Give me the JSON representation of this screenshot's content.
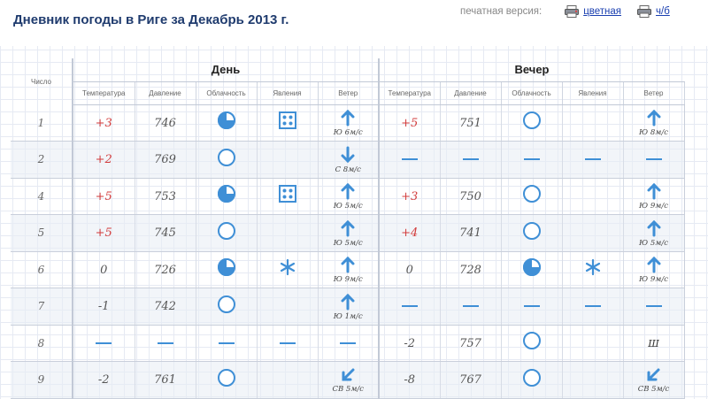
{
  "header": {
    "title": "Дневник погоды в Риге за Декабрь 2013 г.",
    "print_label": "печатная версия:",
    "print_color": "цветная",
    "print_bw": "ч/б"
  },
  "table": {
    "num_header": "Число",
    "groups": [
      "День",
      "Вечер"
    ],
    "columns": [
      "Температура",
      "Давление",
      "Облачность",
      "Явления",
      "Ветер"
    ],
    "rows": [
      {
        "day": "1",
        "d": {
          "t": "+3",
          "p": "746",
          "c": "partly",
          "ph": "snow-grains",
          "w": {
            "dir": "n",
            "label": "Ю 6м/с"
          }
        },
        "e": {
          "t": "+5",
          "p": "751",
          "c": "clear",
          "ph": "",
          "w": {
            "dir": "n",
            "label": "Ю 8м/с"
          }
        }
      },
      {
        "day": "2",
        "d": {
          "t": "+2",
          "p": "769",
          "c": "clear",
          "ph": "",
          "w": {
            "dir": "s",
            "label": "С 8м/с"
          }
        },
        "e": null
      },
      {
        "day": "4",
        "d": {
          "t": "+5",
          "p": "753",
          "c": "partly",
          "ph": "snow-grains",
          "w": {
            "dir": "n",
            "label": "Ю 5м/с"
          }
        },
        "e": {
          "t": "+3",
          "p": "750",
          "c": "clear",
          "ph": "",
          "w": {
            "dir": "n",
            "label": "Ю 9м/с"
          }
        }
      },
      {
        "day": "5",
        "d": {
          "t": "+5",
          "p": "745",
          "c": "clear",
          "ph": "",
          "w": {
            "dir": "n",
            "label": "Ю 5м/с"
          }
        },
        "e": {
          "t": "+4",
          "p": "741",
          "c": "clear",
          "ph": "",
          "w": {
            "dir": "n",
            "label": "Ю 5м/с"
          }
        }
      },
      {
        "day": "6",
        "d": {
          "t": "0",
          "p": "726",
          "c": "partly",
          "ph": "snowflake",
          "w": {
            "dir": "n",
            "label": "Ю 9м/с"
          }
        },
        "e": {
          "t": "0",
          "p": "728",
          "c": "partly",
          "ph": "snowflake",
          "w": {
            "dir": "n",
            "label": "Ю 9м/с"
          }
        }
      },
      {
        "day": "7",
        "d": {
          "t": "-1",
          "p": "742",
          "c": "clear",
          "ph": "",
          "w": {
            "dir": "n",
            "label": "Ю 1м/с"
          }
        },
        "e": null
      },
      {
        "day": "8",
        "d": null,
        "e": {
          "t": "-2",
          "p": "757",
          "c": "clear",
          "ph": "",
          "w": {
            "dir": "calm",
            "label": "Ш"
          }
        }
      },
      {
        "day": "9",
        "d": {
          "t": "-2",
          "p": "761",
          "c": "clear",
          "ph": "",
          "w": {
            "dir": "sw",
            "label": "СВ 5м/с"
          }
        },
        "e": {
          "t": "-8",
          "p": "767",
          "c": "clear",
          "ph": "",
          "w": {
            "dir": "sw",
            "label": "СВ 5м/с"
          }
        }
      }
    ]
  },
  "colors": {
    "accent": "#3f8fd6",
    "positive": "#d23b3b",
    "title": "#1f3b6e",
    "link": "#1a3fb0"
  }
}
